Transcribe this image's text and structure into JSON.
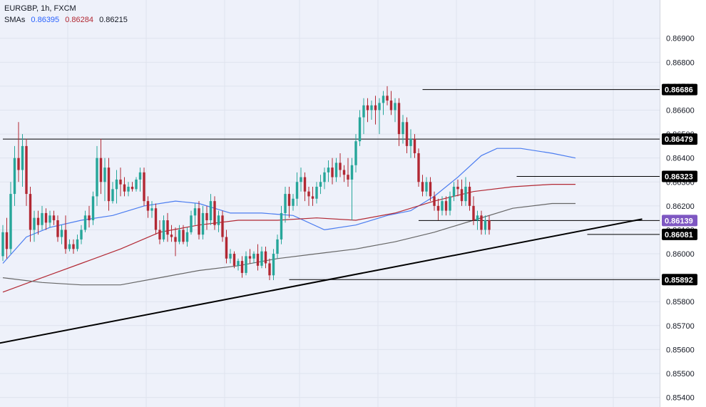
{
  "header": {
    "symbol": "EURGBP",
    "interval": "1h",
    "source": "FXCM",
    "sma_label": "SMAs",
    "sma_values": [
      {
        "value": "0.86395",
        "color": "#2962ff"
      },
      {
        "value": "0.86284",
        "color": "#b22833"
      },
      {
        "value": "0.86215",
        "color": "#131722"
      }
    ]
  },
  "chart_data": {
    "type": "candlestick",
    "ylim": [
      0.8536,
      0.8706
    ],
    "y_ticks": [
      "0.86900",
      "0.86800",
      "0.86700",
      "0.86600",
      "0.86500",
      "0.86400",
      "0.86300",
      "0.86200",
      "0.86100",
      "0.86000",
      "0.85900",
      "0.85800",
      "0.85700",
      "0.85600",
      "0.85500",
      "0.85400"
    ],
    "price_labels": [
      {
        "value": "0.86686",
        "color": "#000000"
      },
      {
        "value": "0.86479",
        "color": "#000000"
      },
      {
        "value": "0.86323",
        "color": "#000000"
      },
      {
        "value": "0.86139",
        "color": "#7e57c2"
      },
      {
        "value": "0.86081",
        "color": "#000000"
      },
      {
        "value": "0.85892",
        "color": "#000000"
      }
    ],
    "horizontal_levels": [
      {
        "price": 0.86686,
        "x_start_bar": 107
      },
      {
        "price": 0.86479,
        "x_start_bar": 0
      },
      {
        "price": 0.86323,
        "x_start_bar": 131
      },
      {
        "price": 0.86139,
        "x_start_bar": 106
      },
      {
        "price": 0.86081,
        "x_start_bar": 149
      },
      {
        "price": 0.85892,
        "x_start_bar": 73
      }
    ],
    "trendline": {
      "from": {
        "bar": -3,
        "price": 0.8562
      },
      "to": {
        "bar": 163,
        "price": 0.86145
      }
    },
    "smas": [
      {
        "name": "SMA 50",
        "color": "#4a7cf0",
        "start_bar": 0,
        "points": [
          [
            0,
            0.8596
          ],
          [
            6,
            0.8607
          ],
          [
            12,
            0.8611
          ],
          [
            20,
            0.8614
          ],
          [
            28,
            0.8616
          ],
          [
            36,
            0.862
          ],
          [
            44,
            0.8622
          ],
          [
            50,
            0.8621
          ],
          [
            58,
            0.8617
          ],
          [
            66,
            0.8617
          ],
          [
            74,
            0.8616
          ],
          [
            82,
            0.861
          ],
          [
            90,
            0.8612
          ],
          [
            98,
            0.8616
          ],
          [
            104,
            0.8618
          ],
          [
            110,
            0.8624
          ],
          [
            116,
            0.8632
          ],
          [
            122,
            0.8641
          ],
          [
            126,
            0.8644
          ],
          [
            132,
            0.8644
          ],
          [
            140,
            0.8642
          ],
          [
            146,
            0.864
          ]
        ]
      },
      {
        "name": "SMA 100",
        "color": "#b22833",
        "start_bar": 0,
        "points": [
          [
            0,
            0.8584
          ],
          [
            10,
            0.859
          ],
          [
            20,
            0.8596
          ],
          [
            30,
            0.8602
          ],
          [
            40,
            0.8609
          ],
          [
            50,
            0.8612
          ],
          [
            60,
            0.8614
          ],
          [
            70,
            0.8614
          ],
          [
            80,
            0.8615
          ],
          [
            90,
            0.8614
          ],
          [
            100,
            0.8617
          ],
          [
            110,
            0.8622
          ],
          [
            120,
            0.8626
          ],
          [
            130,
            0.8628
          ],
          [
            140,
            0.8629
          ],
          [
            146,
            0.8629
          ]
        ]
      },
      {
        "name": "SMA 200",
        "color": "#666666",
        "start_bar": 0,
        "points": [
          [
            0,
            0.859
          ],
          [
            10,
            0.8588
          ],
          [
            20,
            0.8587
          ],
          [
            30,
            0.8587
          ],
          [
            40,
            0.859
          ],
          [
            50,
            0.8593
          ],
          [
            60,
            0.8595
          ],
          [
            70,
            0.8598
          ],
          [
            80,
            0.86
          ],
          [
            90,
            0.8602
          ],
          [
            100,
            0.8605
          ],
          [
            110,
            0.8609
          ],
          [
            120,
            0.8614
          ],
          [
            130,
            0.8619
          ],
          [
            140,
            0.8621
          ],
          [
            146,
            0.8621
          ]
        ]
      }
    ],
    "candles": [
      {
        "o": 0.8599,
        "h": 0.8612,
        "l": 0.8597,
        "c": 0.8609
      },
      {
        "o": 0.8609,
        "h": 0.8615,
        "l": 0.8598,
        "c": 0.8602
      },
      {
        "o": 0.8602,
        "h": 0.863,
        "l": 0.86,
        "c": 0.8625
      },
      {
        "o": 0.8625,
        "h": 0.8645,
        "l": 0.862,
        "c": 0.864
      },
      {
        "o": 0.864,
        "h": 0.8655,
        "l": 0.863,
        "c": 0.8635
      },
      {
        "o": 0.8635,
        "h": 0.865,
        "l": 0.8628,
        "c": 0.8645
      },
      {
        "o": 0.8645,
        "h": 0.8648,
        "l": 0.862,
        "c": 0.8625
      },
      {
        "o": 0.8625,
        "h": 0.8628,
        "l": 0.8605,
        "c": 0.861
      },
      {
        "o": 0.861,
        "h": 0.8618,
        "l": 0.8605,
        "c": 0.8615
      },
      {
        "o": 0.8615,
        "h": 0.8618,
        "l": 0.8608,
        "c": 0.8612
      },
      {
        "o": 0.8612,
        "h": 0.862,
        "l": 0.861,
        "c": 0.8617
      },
      {
        "o": 0.8617,
        "h": 0.8619,
        "l": 0.861,
        "c": 0.8613
      },
      {
        "o": 0.8613,
        "h": 0.8618,
        "l": 0.8611,
        "c": 0.8616
      },
      {
        "o": 0.8616,
        "h": 0.8618,
        "l": 0.8612,
        "c": 0.8614
      },
      {
        "o": 0.8614,
        "h": 0.8616,
        "l": 0.8605,
        "c": 0.8607
      },
      {
        "o": 0.8607,
        "h": 0.8612,
        "l": 0.8604,
        "c": 0.861
      },
      {
        "o": 0.861,
        "h": 0.8616,
        "l": 0.86,
        "c": 0.8602
      },
      {
        "o": 0.8602,
        "h": 0.8606,
        "l": 0.8601,
        "c": 0.8604
      },
      {
        "o": 0.8604,
        "h": 0.8606,
        "l": 0.86,
        "c": 0.8602
      },
      {
        "o": 0.8602,
        "h": 0.8608,
        "l": 0.8601,
        "c": 0.8606
      },
      {
        "o": 0.8606,
        "h": 0.8612,
        "l": 0.8604,
        "c": 0.861
      },
      {
        "o": 0.861,
        "h": 0.8618,
        "l": 0.8609,
        "c": 0.8616
      },
      {
        "o": 0.8616,
        "h": 0.862,
        "l": 0.8611,
        "c": 0.8614
      },
      {
        "o": 0.8614,
        "h": 0.8626,
        "l": 0.8612,
        "c": 0.8624
      },
      {
        "o": 0.8624,
        "h": 0.8645,
        "l": 0.862,
        "c": 0.864
      },
      {
        "o": 0.864,
        "h": 0.8648,
        "l": 0.8625,
        "c": 0.863
      },
      {
        "o": 0.863,
        "h": 0.864,
        "l": 0.8622,
        "c": 0.8636
      },
      {
        "o": 0.8636,
        "h": 0.864,
        "l": 0.8618,
        "c": 0.8622
      },
      {
        "o": 0.8622,
        "h": 0.863,
        "l": 0.8621,
        "c": 0.8627
      },
      {
        "o": 0.8627,
        "h": 0.8635,
        "l": 0.8621,
        "c": 0.8631
      },
      {
        "o": 0.8631,
        "h": 0.8636,
        "l": 0.8624,
        "c": 0.8629
      },
      {
        "o": 0.8629,
        "h": 0.8632,
        "l": 0.8624,
        "c": 0.8626
      },
      {
        "o": 0.8626,
        "h": 0.863,
        "l": 0.8624,
        "c": 0.8628
      },
      {
        "o": 0.8628,
        "h": 0.863,
        "l": 0.8626,
        "c": 0.8627
      },
      {
        "o": 0.8627,
        "h": 0.8632,
        "l": 0.8626,
        "c": 0.8631
      },
      {
        "o": 0.8631,
        "h": 0.8636,
        "l": 0.8626,
        "c": 0.8634
      },
      {
        "o": 0.8634,
        "h": 0.8636,
        "l": 0.862,
        "c": 0.8622
      },
      {
        "o": 0.8622,
        "h": 0.8624,
        "l": 0.8615,
        "c": 0.8618
      },
      {
        "o": 0.8618,
        "h": 0.8622,
        "l": 0.8615,
        "c": 0.8619
      },
      {
        "o": 0.8619,
        "h": 0.8621,
        "l": 0.8608,
        "c": 0.861
      },
      {
        "o": 0.861,
        "h": 0.8614,
        "l": 0.8604,
        "c": 0.8606
      },
      {
        "o": 0.8606,
        "h": 0.8616,
        "l": 0.8605,
        "c": 0.8614
      },
      {
        "o": 0.8614,
        "h": 0.8617,
        "l": 0.8605,
        "c": 0.8608
      },
      {
        "o": 0.8608,
        "h": 0.8612,
        "l": 0.8605,
        "c": 0.8607
      },
      {
        "o": 0.8607,
        "h": 0.8611,
        "l": 0.8599,
        "c": 0.8605
      },
      {
        "o": 0.8605,
        "h": 0.8612,
        "l": 0.8604,
        "c": 0.861
      },
      {
        "o": 0.861,
        "h": 0.8612,
        "l": 0.8604,
        "c": 0.8605
      },
      {
        "o": 0.8605,
        "h": 0.8611,
        "l": 0.8603,
        "c": 0.8609
      },
      {
        "o": 0.8609,
        "h": 0.8618,
        "l": 0.8608,
        "c": 0.8616
      },
      {
        "o": 0.8616,
        "h": 0.8621,
        "l": 0.8612,
        "c": 0.8619
      },
      {
        "o": 0.8619,
        "h": 0.8622,
        "l": 0.8606,
        "c": 0.8608
      },
      {
        "o": 0.8608,
        "h": 0.862,
        "l": 0.8606,
        "c": 0.8617
      },
      {
        "o": 0.8617,
        "h": 0.862,
        "l": 0.861,
        "c": 0.8614
      },
      {
        "o": 0.8614,
        "h": 0.8625,
        "l": 0.8612,
        "c": 0.8622
      },
      {
        "o": 0.8622,
        "h": 0.8624,
        "l": 0.861,
        "c": 0.8612
      },
      {
        "o": 0.8612,
        "h": 0.8618,
        "l": 0.8609,
        "c": 0.8616
      },
      {
        "o": 0.8616,
        "h": 0.8618,
        "l": 0.8605,
        "c": 0.8607
      },
      {
        "o": 0.8607,
        "h": 0.861,
        "l": 0.8596,
        "c": 0.8598
      },
      {
        "o": 0.8598,
        "h": 0.8602,
        "l": 0.8596,
        "c": 0.86
      },
      {
        "o": 0.86,
        "h": 0.8601,
        "l": 0.8594,
        "c": 0.8595
      },
      {
        "o": 0.8595,
        "h": 0.8598,
        "l": 0.8593,
        "c": 0.8597
      },
      {
        "o": 0.8597,
        "h": 0.8599,
        "l": 0.859,
        "c": 0.8592
      },
      {
        "o": 0.8592,
        "h": 0.8601,
        "l": 0.8591,
        "c": 0.8599
      },
      {
        "o": 0.8599,
        "h": 0.8602,
        "l": 0.8596,
        "c": 0.8598
      },
      {
        "o": 0.8598,
        "h": 0.8601,
        "l": 0.8596,
        "c": 0.86
      },
      {
        "o": 0.86,
        "h": 0.8604,
        "l": 0.8593,
        "c": 0.8595
      },
      {
        "o": 0.8595,
        "h": 0.8603,
        "l": 0.8594,
        "c": 0.8601
      },
      {
        "o": 0.8601,
        "h": 0.8603,
        "l": 0.8594,
        "c": 0.8596
      },
      {
        "o": 0.8596,
        "h": 0.8598,
        "l": 0.8589,
        "c": 0.8591
      },
      {
        "o": 0.8591,
        "h": 0.8602,
        "l": 0.8589,
        "c": 0.86
      },
      {
        "o": 0.86,
        "h": 0.8608,
        "l": 0.8598,
        "c": 0.8606
      },
      {
        "o": 0.8606,
        "h": 0.862,
        "l": 0.8604,
        "c": 0.8617
      },
      {
        "o": 0.8617,
        "h": 0.8628,
        "l": 0.8613,
        "c": 0.8625
      },
      {
        "o": 0.8625,
        "h": 0.8628,
        "l": 0.8615,
        "c": 0.862
      },
      {
        "o": 0.862,
        "h": 0.8625,
        "l": 0.8618,
        "c": 0.8623
      },
      {
        "o": 0.8623,
        "h": 0.8634,
        "l": 0.862,
        "c": 0.863
      },
      {
        "o": 0.863,
        "h": 0.8636,
        "l": 0.8626,
        "c": 0.8632
      },
      {
        "o": 0.8632,
        "h": 0.8634,
        "l": 0.8622,
        "c": 0.8626
      },
      {
        "o": 0.8626,
        "h": 0.8628,
        "l": 0.862,
        "c": 0.8624
      },
      {
        "o": 0.8624,
        "h": 0.8628,
        "l": 0.862,
        "c": 0.8623
      },
      {
        "o": 0.8623,
        "h": 0.863,
        "l": 0.8621,
        "c": 0.8628
      },
      {
        "o": 0.8628,
        "h": 0.8633,
        "l": 0.8625,
        "c": 0.863
      },
      {
        "o": 0.863,
        "h": 0.8636,
        "l": 0.8627,
        "c": 0.8634
      },
      {
        "o": 0.8634,
        "h": 0.8639,
        "l": 0.863,
        "c": 0.8636
      },
      {
        "o": 0.8636,
        "h": 0.864,
        "l": 0.8629,
        "c": 0.8632
      },
      {
        "o": 0.8632,
        "h": 0.864,
        "l": 0.863,
        "c": 0.8638
      },
      {
        "o": 0.8638,
        "h": 0.8642,
        "l": 0.8632,
        "c": 0.8635
      },
      {
        "o": 0.8635,
        "h": 0.8637,
        "l": 0.863,
        "c": 0.8633
      },
      {
        "o": 0.8633,
        "h": 0.864,
        "l": 0.8628,
        "c": 0.8631
      },
      {
        "o": 0.8631,
        "h": 0.864,
        "l": 0.8614,
        "c": 0.8637
      },
      {
        "o": 0.8637,
        "h": 0.865,
        "l": 0.8634,
        "c": 0.8647
      },
      {
        "o": 0.8647,
        "h": 0.866,
        "l": 0.8645,
        "c": 0.8657
      },
      {
        "o": 0.8657,
        "h": 0.8665,
        "l": 0.865,
        "c": 0.8662
      },
      {
        "o": 0.8662,
        "h": 0.8665,
        "l": 0.8655,
        "c": 0.866
      },
      {
        "o": 0.866,
        "h": 0.8664,
        "l": 0.8656,
        "c": 0.8662
      },
      {
        "o": 0.8662,
        "h": 0.8666,
        "l": 0.8654,
        "c": 0.866
      },
      {
        "o": 0.866,
        "h": 0.8665,
        "l": 0.865,
        "c": 0.8663
      },
      {
        "o": 0.8663,
        "h": 0.8668,
        "l": 0.8658,
        "c": 0.8666
      },
      {
        "o": 0.8666,
        "h": 0.867,
        "l": 0.8662,
        "c": 0.8664
      },
      {
        "o": 0.8664,
        "h": 0.8668,
        "l": 0.8658,
        "c": 0.866
      },
      {
        "o": 0.866,
        "h": 0.8665,
        "l": 0.8655,
        "c": 0.8663
      },
      {
        "o": 0.8663,
        "h": 0.8665,
        "l": 0.8645,
        "c": 0.865
      },
      {
        "o": 0.865,
        "h": 0.8658,
        "l": 0.8646,
        "c": 0.8655
      },
      {
        "o": 0.8655,
        "h": 0.8657,
        "l": 0.8642,
        "c": 0.8645
      },
      {
        "o": 0.8645,
        "h": 0.8652,
        "l": 0.864,
        "c": 0.8648
      },
      {
        "o": 0.8648,
        "h": 0.865,
        "l": 0.864,
        "c": 0.8642
      },
      {
        "o": 0.8642,
        "h": 0.8644,
        "l": 0.8628,
        "c": 0.863
      },
      {
        "o": 0.863,
        "h": 0.8633,
        "l": 0.8624,
        "c": 0.8626
      },
      {
        "o": 0.8626,
        "h": 0.8632,
        "l": 0.8624,
        "c": 0.863
      },
      {
        "o": 0.863,
        "h": 0.8632,
        "l": 0.8622,
        "c": 0.8624
      },
      {
        "o": 0.8624,
        "h": 0.8626,
        "l": 0.8618,
        "c": 0.862
      },
      {
        "o": 0.862,
        "h": 0.8623,
        "l": 0.8614,
        "c": 0.8618
      },
      {
        "o": 0.8618,
        "h": 0.8624,
        "l": 0.8616,
        "c": 0.8622
      },
      {
        "o": 0.8622,
        "h": 0.8624,
        "l": 0.8616,
        "c": 0.8618
      },
      {
        "o": 0.8618,
        "h": 0.8626,
        "l": 0.8616,
        "c": 0.8624
      },
      {
        "o": 0.8624,
        "h": 0.863,
        "l": 0.8622,
        "c": 0.8628
      },
      {
        "o": 0.8628,
        "h": 0.8631,
        "l": 0.8624,
        "c": 0.8627
      },
      {
        "o": 0.8627,
        "h": 0.8631,
        "l": 0.862,
        "c": 0.8622
      },
      {
        "o": 0.8622,
        "h": 0.8632,
        "l": 0.862,
        "c": 0.8628
      },
      {
        "o": 0.8628,
        "h": 0.863,
        "l": 0.8618,
        "c": 0.862
      },
      {
        "o": 0.862,
        "h": 0.8624,
        "l": 0.8612,
        "c": 0.8614
      },
      {
        "o": 0.8614,
        "h": 0.8618,
        "l": 0.861,
        "c": 0.8616
      },
      {
        "o": 0.8616,
        "h": 0.8618,
        "l": 0.8608,
        "c": 0.861
      },
      {
        "o": 0.861,
        "h": 0.8616,
        "l": 0.8608,
        "c": 0.8614
      },
      {
        "o": 0.8614,
        "h": 0.8616,
        "l": 0.8608,
        "c": 0.861
      }
    ]
  }
}
